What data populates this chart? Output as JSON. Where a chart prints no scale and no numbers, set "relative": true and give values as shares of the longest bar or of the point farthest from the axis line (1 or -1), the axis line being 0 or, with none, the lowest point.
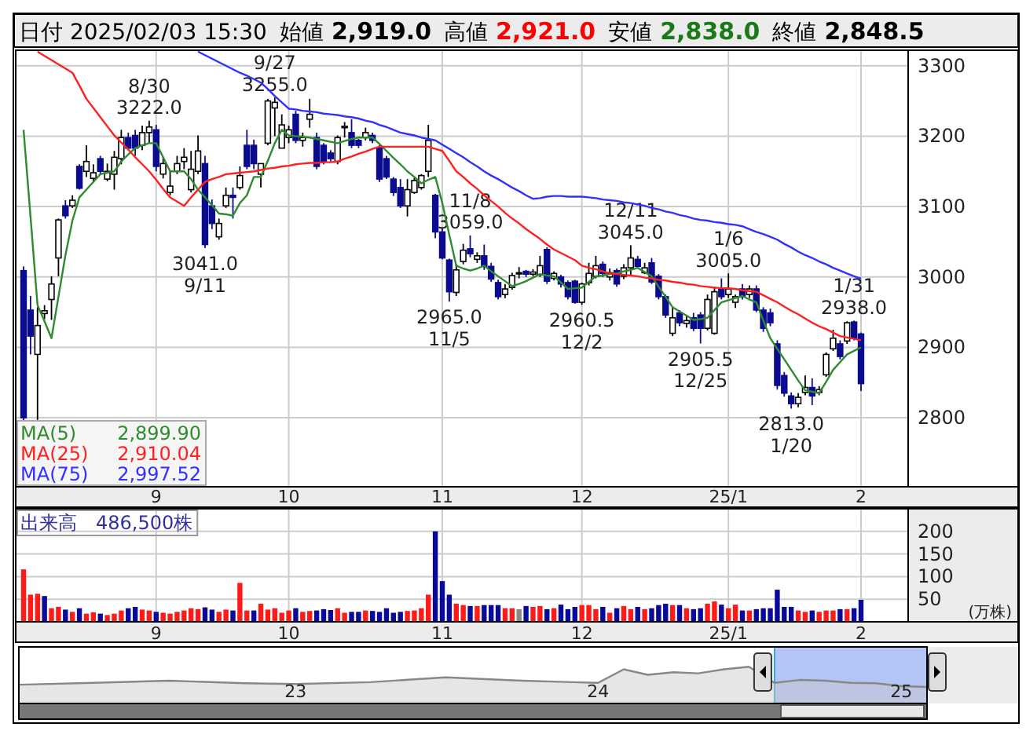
{
  "chart_data": [
    {
      "type": "candlestick",
      "title": "日付 2025/02/03 15:30",
      "categories": [
        null,
        null,
        null,
        null,
        null,
        null,
        null,
        null,
        null,
        null,
        null,
        null,
        null,
        null,
        null,
        null,
        null,
        null,
        null,
        "9",
        null,
        null,
        null,
        null,
        null,
        null,
        null,
        null,
        null,
        null,
        null,
        null,
        null,
        null,
        null,
        null,
        null,
        null,
        "10",
        null,
        null,
        null,
        null,
        null,
        null,
        null,
        null,
        null,
        null,
        null,
        null,
        null,
        null,
        null,
        null,
        null,
        null,
        null,
        null,
        null,
        "11",
        null,
        null,
        null,
        null,
        null,
        null,
        null,
        null,
        null,
        null,
        null,
        null,
        null,
        null,
        null,
        null,
        null,
        null,
        null,
        "12",
        null,
        null,
        null,
        null,
        null,
        null,
        null,
        null,
        null,
        null,
        null,
        null,
        null,
        null,
        null,
        null,
        null,
        null,
        null,
        null,
        "25/1",
        null,
        null,
        null,
        null,
        null,
        null,
        null,
        null,
        null,
        null,
        null,
        null,
        null,
        null,
        null,
        null,
        null,
        null,
        "2"
      ],
      "ohlc": [
        [
          3009,
          3015,
          2795,
          2800
        ],
        [
          2953,
          2973,
          2890,
          2916
        ],
        [
          2890,
          2957,
          2797,
          2931
        ],
        [
          2948,
          2960,
          2940,
          2952
        ],
        [
          2968,
          3001,
          2939,
          2990
        ],
        [
          3027,
          3083,
          3001,
          3081
        ],
        [
          3101,
          3109,
          3083,
          3087
        ],
        [
          3101,
          3116,
          3098,
          3109
        ],
        [
          3157,
          3160,
          3124,
          3126
        ],
        [
          3150,
          3187,
          3142,
          3164
        ],
        [
          3140,
          3160,
          3135,
          3148
        ],
        [
          3168,
          3172,
          3146,
          3150
        ],
        [
          3139,
          3161,
          3136,
          3150
        ],
        [
          3146,
          3179,
          3124,
          3170
        ],
        [
          3168,
          3209,
          3160,
          3198
        ],
        [
          3198,
          3205,
          3180,
          3183
        ],
        [
          3201,
          3209,
          3172,
          3183
        ],
        [
          3187,
          3215,
          3180,
          3205
        ],
        [
          3205,
          3222,
          3190,
          3213
        ],
        [
          3209,
          3216,
          3150,
          3157
        ],
        [
          3146,
          3170,
          3140,
          3161
        ],
        [
          3120,
          3150,
          3116,
          3129
        ],
        [
          3150,
          3172,
          3146,
          3161
        ],
        [
          3164,
          3183,
          3153,
          3170
        ],
        [
          3124,
          3179,
          3120,
          3153
        ],
        [
          3150,
          3201,
          3146,
          3179
        ],
        [
          3161,
          3172,
          3041,
          3046
        ],
        [
          3101,
          3110,
          3068,
          3076
        ],
        [
          3057,
          3083,
          3053,
          3076
        ],
        [
          3101,
          3127,
          3098,
          3116
        ],
        [
          3116,
          3127,
          3083,
          3113
        ],
        [
          3127,
          3157,
          3124,
          3144
        ],
        [
          3187,
          3209,
          3153,
          3157
        ],
        [
          3187,
          3195,
          3153,
          3161
        ],
        [
          3146,
          3161,
          3127,
          3161
        ],
        [
          3190,
          3253,
          3187,
          3250
        ],
        [
          3240,
          3255,
          3200,
          3248
        ],
        [
          3183,
          3231,
          3183,
          3216
        ],
        [
          3198,
          3215,
          3190,
          3209
        ],
        [
          3231,
          3236,
          3190,
          3194
        ],
        [
          3194,
          3205,
          3185,
          3198
        ],
        [
          3224,
          3253,
          3212,
          3231
        ],
        [
          3198,
          3205,
          3153,
          3157
        ],
        [
          3187,
          3190,
          3160,
          3164
        ],
        [
          3176,
          3180,
          3164,
          3168
        ],
        [
          3164,
          3201,
          3160,
          3198
        ],
        [
          3212,
          3220,
          3198,
          3214
        ],
        [
          3205,
          3224,
          3183,
          3187
        ],
        [
          3194,
          3196,
          3183,
          3187
        ],
        [
          3198,
          3212,
          3194,
          3205
        ],
        [
          3201,
          3205,
          3190,
          3194
        ],
        [
          3183,
          3187,
          3135,
          3139
        ],
        [
          3168,
          3172,
          3139,
          3142
        ],
        [
          3139,
          3142,
          3115,
          3120
        ],
        [
          3127,
          3139,
          3098,
          3101
        ],
        [
          3101,
          3139,
          3086,
          3124
        ],
        [
          3120,
          3142,
          3118,
          3137
        ],
        [
          3127,
          3146,
          3124,
          3144
        ],
        [
          3150,
          3216,
          3142,
          3194
        ],
        [
          3116,
          3118,
          3055,
          3064
        ],
        [
          3064,
          3070,
          3025,
          3027
        ],
        [
          3024,
          3026,
          2965,
          2979
        ],
        [
          2978,
          3018,
          2973,
          3010
        ],
        [
          3022,
          3047,
          3018,
          3038
        ],
        [
          3040,
          3059,
          3028,
          3033
        ],
        [
          3025,
          3035,
          3020,
          3030
        ],
        [
          3030,
          3046,
          3010,
          3015
        ],
        [
          3015,
          3020,
          2993,
          2997
        ],
        [
          2992,
          2996,
          2968,
          2972
        ],
        [
          2975,
          2990,
          2970,
          2983
        ],
        [
          2985,
          3006,
          2982,
          3002
        ],
        [
          3006,
          3014,
          2998,
          3006
        ],
        [
          3008,
          3010,
          3000,
          3004
        ],
        [
          3004,
          3011,
          3001,
          3007
        ],
        [
          3003,
          3030,
          3000,
          3016
        ],
        [
          3039,
          3042,
          2990,
          2994
        ],
        [
          2998,
          3008,
          2995,
          3005
        ],
        [
          3000,
          3003,
          2985,
          2990
        ],
        [
          2992,
          2995,
          2968,
          2972
        ],
        [
          2994,
          2996,
          2962,
          2964
        ],
        [
          2964,
          2992,
          2960.5,
          2990
        ],
        [
          2992,
          3020,
          2988,
          3005
        ],
        [
          3001,
          3030,
          2998,
          3016
        ],
        [
          3018,
          3022,
          3000,
          3005
        ],
        [
          3000,
          3012,
          2995,
          3006
        ],
        [
          3009,
          3012,
          2986,
          2990
        ],
        [
          3001,
          3018,
          2997,
          3013
        ],
        [
          3013,
          3045,
          3001,
          3027
        ],
        [
          3025,
          3030,
          3012,
          3015
        ],
        [
          3006,
          3020,
          3004,
          3013
        ],
        [
          3020,
          3027,
          2990,
          2993
        ],
        [
          3001,
          3004,
          2968,
          2972
        ],
        [
          2972,
          2975,
          2942,
          2946
        ],
        [
          2920,
          2957,
          2916,
          2942
        ],
        [
          2949,
          2953,
          2930,
          2935
        ],
        [
          2934,
          2945,
          2928,
          2938
        ],
        [
          2942,
          2949,
          2923,
          2927
        ],
        [
          2946,
          2950,
          2905.5,
          2927
        ],
        [
          2927,
          2975,
          2924,
          2968
        ],
        [
          2920,
          2985,
          2918,
          2979
        ],
        [
          2983,
          2998,
          2968,
          2972
        ],
        [
          2975,
          3005,
          2970,
          2983
        ],
        [
          2964,
          2975,
          2956,
          2972
        ],
        [
          2983,
          2990,
          2968,
          2972
        ],
        [
          2975,
          2988,
          2970,
          2983
        ],
        [
          2983,
          2988,
          2950,
          2953
        ],
        [
          2953,
          2957,
          2922,
          2927
        ],
        [
          2949,
          2955,
          2930,
          2935
        ],
        [
          2905,
          2910,
          2840,
          2846
        ],
        [
          2860,
          2865,
          2830,
          2835
        ],
        [
          2831,
          2836,
          2813,
          2820
        ],
        [
          2820,
          2835,
          2815,
          2829
        ],
        [
          2836,
          2860,
          2832,
          2843
        ],
        [
          2843,
          2856,
          2818,
          2831
        ],
        [
          2836,
          2845,
          2832,
          2840
        ],
        [
          2861,
          2893,
          2858,
          2890
        ],
        [
          2898,
          2925,
          2895,
          2913
        ],
        [
          2905,
          2910,
          2883,
          2887
        ],
        [
          2909,
          2937,
          2905,
          2935
        ],
        [
          2936,
          2938,
          2910,
          2913
        ],
        [
          2919,
          2921,
          2838,
          2848.5
        ]
      ],
      "series": [
        {
          "name": "MA(5) 2,899.90",
          "type": "line",
          "color": "#2e8b2e",
          "values": [
            3209,
            3085,
            2960,
            2937,
            2913,
            2972,
            3031,
            3080,
            3113,
            3124,
            3135,
            3146,
            3148,
            3150,
            3164,
            3174,
            3183,
            3187,
            3190,
            3190,
            3170,
            3150,
            3150,
            3150,
            3139,
            3124,
            3113,
            3102,
            3090,
            3089,
            3087,
            3105,
            3116,
            3142,
            3142,
            3165,
            3190,
            3209,
            3201,
            3200,
            3199,
            3198,
            3196,
            3194,
            3192,
            3190,
            3193,
            3196,
            3198,
            3198,
            3198,
            3189,
            3179,
            3169,
            3160,
            3150,
            3142,
            3133,
            3138,
            3142,
            3105,
            3060,
            3016,
            3012,
            3009,
            3012,
            3016,
            3008,
            3001,
            2994,
            2987,
            2990,
            2994,
            2999,
            3004,
            3002,
            3001,
            2992,
            2983,
            2984,
            2985,
            2993,
            3001,
            3002,
            3004,
            3005,
            3008,
            3010,
            3013,
            3007,
            3001,
            2986,
            2972,
            2957,
            2951,
            2945,
            2939,
            2940,
            2942,
            2953,
            2964,
            2967,
            2970,
            2973,
            2968,
            2964,
            2938,
            2913,
            2898,
            2883,
            2868,
            2853,
            2839,
            2837,
            2835,
            2851,
            2868,
            2879,
            2890,
            2895,
            2899.9
          ]
        },
        {
          "name": "MA(25) 2,910.04",
          "type": "line",
          "color": "#ff2020",
          "values": [
            null,
            null,
            3320,
            3314,
            3308,
            3302,
            3296,
            3290,
            3272,
            3253,
            3240,
            3227,
            3214,
            3201,
            3191,
            3181,
            3170,
            3160,
            3150,
            3138,
            3125,
            3113,
            3107,
            3101,
            3113,
            3124,
            3135,
            3139,
            3142,
            3146,
            3147,
            3148,
            3149,
            3150,
            3152,
            3154,
            3155,
            3157,
            3158,
            3160,
            3161,
            3162,
            3162,
            3163,
            3163,
            3164,
            3168,
            3171,
            3175,
            3178,
            3182,
            3185,
            3185,
            3185,
            3185,
            3185,
            3185,
            3185,
            3185,
            3182,
            3179,
            3165,
            3150,
            3142,
            3133,
            3125,
            3116,
            3108,
            3100,
            3091,
            3083,
            3076,
            3068,
            3061,
            3054,
            3046,
            3039,
            3034,
            3029,
            3024,
            3016,
            3013,
            3011,
            3008,
            3005,
            3004,
            3003,
            3002,
            3001,
            2999,
            2998,
            2996,
            2995,
            2993,
            2992,
            2990,
            2989,
            2987,
            2986,
            2985,
            2984,
            2984,
            2983,
            2981,
            2980,
            2979,
            2974,
            2969,
            2964,
            2958,
            2952,
            2947,
            2941,
            2935,
            2930,
            2926,
            2921,
            2916,
            2914,
            2912,
            2910.04
          ]
        },
        {
          "name": "MA(75) 2,997.52",
          "type": "line",
          "color": "#3030ff",
          "values": [
            null,
            null,
            null,
            null,
            null,
            null,
            null,
            null,
            null,
            null,
            null,
            null,
            null,
            null,
            null,
            null,
            null,
            null,
            null,
            null,
            null,
            null,
            null,
            null,
            null,
            3320,
            3315,
            3310,
            3305,
            3300,
            3295,
            3290,
            3286,
            3281,
            3276,
            3267,
            3257,
            3248,
            3239,
            3238,
            3236,
            3235,
            3234,
            3232,
            3231,
            3230,
            3228,
            3227,
            3225,
            3222,
            3220,
            3216,
            3213,
            3209,
            3205,
            3203,
            3201,
            3198,
            3196,
            3194,
            3188,
            3182,
            3176,
            3170,
            3163,
            3157,
            3150,
            3144,
            3139,
            3133,
            3127,
            3122,
            3116,
            3111,
            3112,
            3114,
            3115,
            3115,
            3114,
            3114,
            3114,
            3113,
            3112,
            3110,
            3109,
            3108,
            3106,
            3105,
            3103,
            3101,
            3098,
            3096,
            3093,
            3091,
            3088,
            3086,
            3083,
            3081,
            3080,
            3078,
            3077,
            3075,
            3074,
            3072,
            3068,
            3064,
            3061,
            3057,
            3053,
            3047,
            3042,
            3036,
            3031,
            3027,
            3022,
            3018,
            3013,
            3009,
            3005,
            3001,
            2997.52
          ]
        }
      ],
      "ylim": [
        2702,
        3322
      ],
      "yticks": [
        2800,
        2900,
        3000,
        3100,
        3200,
        3300
      ],
      "grid": true,
      "annotations": [
        "始値 2,919.0",
        "高値 2,921.0",
        "安値 2,838.0",
        "終値 2,848.5",
        {
          "text": "8/30\n3222.0",
          "y": 3222
        },
        {
          "text": "9/27\n3255.0",
          "y": 3255
        },
        {
          "text": "3041.0\n9/11",
          "y": 3041
        },
        {
          "text": "11/8\n3059.0",
          "y": 3059
        },
        {
          "text": "2965.0\n11/5",
          "y": 2965
        },
        {
          "text": "12/11\n3045.0",
          "y": 3045
        },
        {
          "text": "2960.5\n12/2",
          "y": 2960.5
        },
        {
          "text": "1/6\n3005.0",
          "y": 3005
        },
        {
          "text": "2905.5\n12/25",
          "y": 2905.5
        },
        {
          "text": "2813.0\n1/20",
          "y": 2813
        },
        {
          "text": "1/31\n2938.0",
          "y": 2938
        }
      ]
    },
    {
      "type": "bar",
      "title": "出来高　486,500株",
      "ylabel": "(万株)",
      "categories": [
        null,
        null,
        null,
        null,
        null,
        null,
        null,
        null,
        null,
        null,
        null,
        null,
        null,
        null,
        null,
        null,
        null,
        null,
        null,
        "9",
        null,
        null,
        null,
        null,
        null,
        null,
        null,
        null,
        null,
        null,
        null,
        null,
        null,
        null,
        null,
        null,
        null,
        null,
        "10",
        null,
        null,
        null,
        null,
        null,
        null,
        null,
        null,
        null,
        null,
        null,
        null,
        null,
        null,
        null,
        null,
        null,
        null,
        null,
        null,
        null,
        "11",
        null,
        null,
        null,
        null,
        null,
        null,
        null,
        null,
        null,
        null,
        null,
        null,
        null,
        null,
        null,
        null,
        null,
        null,
        null,
        "12",
        null,
        null,
        null,
        null,
        null,
        null,
        null,
        null,
        null,
        null,
        null,
        null,
        null,
        null,
        null,
        null,
        null,
        null,
        null,
        null,
        "25/1",
        null,
        null,
        null,
        null,
        null,
        null,
        null,
        null,
        null,
        null,
        null,
        null,
        null,
        null,
        null,
        null,
        null,
        null,
        "2"
      ],
      "values": [
        116,
        60,
        62,
        57,
        30,
        33,
        27,
        22,
        30,
        18,
        21,
        18,
        15,
        18,
        25,
        30,
        33,
        27,
        25,
        22,
        20,
        18,
        22,
        25,
        30,
        28,
        32,
        27,
        22,
        27,
        25,
        86,
        25,
        25,
        40,
        27,
        30,
        20,
        25,
        30,
        22,
        24,
        25,
        28,
        26,
        30,
        20,
        22,
        22,
        25,
        24,
        22,
        30,
        20,
        22,
        24,
        25,
        30,
        60,
        200,
        90,
        60,
        40,
        37,
        35,
        35,
        37,
        37,
        37,
        30,
        30,
        28,
        35,
        33,
        35,
        28,
        30,
        38,
        28,
        33,
        37,
        37,
        28,
        33,
        20,
        30,
        35,
        28,
        33,
        28,
        30,
        37,
        40,
        37,
        37,
        30,
        28,
        30,
        40,
        45,
        38,
        30,
        38,
        25,
        25,
        28,
        30,
        30,
        71,
        33,
        33,
        25,
        22,
        25,
        22,
        25,
        25,
        28,
        28,
        30,
        48.65
      ],
      "colors": [
        "#ff1a1a",
        "#ff1a1a",
        "#ff1a1a",
        "#0a0a9a",
        "#ff1a1a",
        "#ff1a1a",
        "#0a0a9a",
        "#ff1a1a",
        "#0a0a9a",
        "#ff1a1a",
        "#ff1a1a",
        "#0a0a9a",
        "#ff1a1a",
        "#ff1a1a",
        "#ff1a1a",
        "#0a0a9a",
        "#0a0a9a",
        "#ff1a1a",
        "#ff1a1a",
        "#0a0a9a",
        "#ff1a1a",
        "#ff1a1a",
        "#ff1a1a",
        "#ff1a1a",
        "#ff1a1a",
        "#ff1a1a",
        "#0a0a9a",
        "#0a0a9a",
        "#ff1a1a",
        "#ff1a1a",
        "#0a0a9a",
        "#ff1a1a",
        "#ff1a1a",
        "#0a0a9a",
        "#ff1a1a",
        "#ff1a1a",
        "#ff1a1a",
        "#ff1a1a",
        "#ff1a1a",
        "#0a0a9a",
        "#ff1a1a",
        "#ff1a1a",
        "#0a0a9a",
        "#0a0a9a",
        "#0a0a9a",
        "#ff1a1a",
        "#ff1a1a",
        "#0a0a9a",
        "#0a0a9a",
        "#ff1a1a",
        "#0a0a9a",
        "#0a0a9a",
        "#0a0a9a",
        "#0a0a9a",
        "#0a0a9a",
        "#ff1a1a",
        "#ff1a1a",
        "#ff1a1a",
        "#ff1a1a",
        "#0a0a9a",
        "#0a0a9a",
        "#0a0a9a",
        "#ff1a1a",
        "#ff1a1a",
        "#0a0a9a",
        "#ff1a1a",
        "#0a0a9a",
        "#0a0a9a",
        "#0a0a9a",
        "#ff1a1a",
        "#ff1a1a",
        "#888888",
        "#0a0a9a",
        "#ff1a1a",
        "#ff1a1a",
        "#0a0a9a",
        "#ff1a1a",
        "#0a0a9a",
        "#0a0a9a",
        "#0a0a9a",
        "#ff1a1a",
        "#ff1a1a",
        "#ff1a1a",
        "#0a0a9a",
        "#ff1a1a",
        "#0a0a9a",
        "#ff1a1a",
        "#ff1a1a",
        "#0a0a9a",
        "#ff1a1a",
        "#0a0a9a",
        "#0a0a9a",
        "#0a0a9a",
        "#ff1a1a",
        "#0a0a9a",
        "#ff1a1a",
        "#0a0a9a",
        "#0a0a9a",
        "#ff1a1a",
        "#ff1a1a",
        "#0a0a9a",
        "#ff1a1a",
        "#ff1a1a",
        "#0a0a9a",
        "#ff1a1a",
        "#0a0a9a",
        "#0a0a9a",
        "#0a0a9a",
        "#0a0a9a",
        "#0a0a9a",
        "#0a0a9a",
        "#ff1a1a",
        "#ff1a1a",
        "#0a0a9a",
        "#ff1a1a",
        "#ff1a1a",
        "#ff1a1a",
        "#0a0a9a",
        "#ff1a1a",
        "#0a0a9a",
        "#0a0a9a"
      ],
      "ylim": [
        0,
        250
      ],
      "yticks": [
        50,
        100,
        150,
        200
      ],
      "grid": true
    },
    {
      "type": "area",
      "relative": true,
      "x": [
        "2022-02",
        "2022-05",
        "2022-08",
        "2022-11",
        "2023-01",
        "2023-04",
        "2023-07",
        "2023-10",
        "2023-12",
        "2024-01",
        "2024-02",
        "2024-03",
        "2024-04",
        "2024-05",
        "2024-06",
        "2024-07",
        "2024-08",
        "2024-09",
        "2024-10",
        "2024-11",
        "2024-12",
        "2025-01",
        "2025-02"
      ],
      "series": [
        {
          "color": "#888888",
          "values": [
            0.51,
            0.56,
            0.62,
            0.55,
            0.53,
            0.58,
            0.71,
            0.62,
            0.58,
            0.56,
            0.93,
            0.78,
            0.85,
            0.82,
            0.93,
            1,
            0.56,
            0.64,
            0.62,
            0.56,
            0.55,
            0.47,
            0.45
          ]
        }
      ],
      "xlim": [
        "2022-02",
        "2025-02"
      ],
      "xticks": [
        {
          "value": "2023-01",
          "label": "23"
        },
        {
          "value": "2024-01",
          "label": "24"
        },
        {
          "value": "2025-01",
          "label": "25"
        }
      ],
      "bands": [
        {
          "axis": "x",
          "from": "2024-08",
          "to": "2025-02",
          "color": "#b4c4f4"
        }
      ]
    }
  ]
}
